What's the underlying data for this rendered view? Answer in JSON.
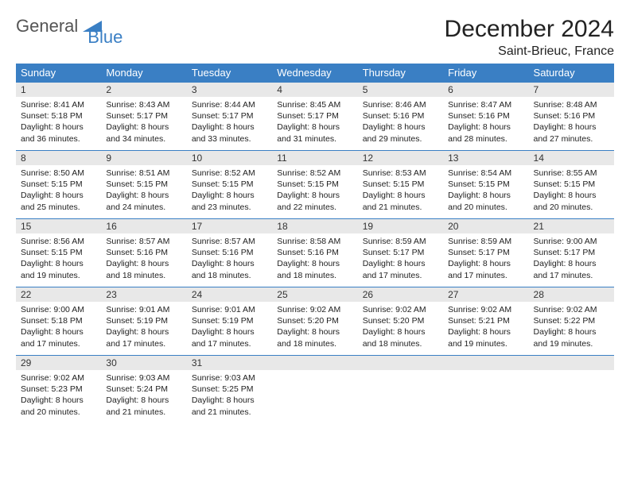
{
  "logo": {
    "general": "General",
    "blue": "Blue"
  },
  "title": "December 2024",
  "location": "Saint-Brieuc, France",
  "colors": {
    "header_bg": "#3a7fc4",
    "header_fg": "#ffffff",
    "daynum_bg": "#e8e8e8",
    "border": "#3a7fc4",
    "text": "#222222",
    "page_bg": "#ffffff"
  },
  "weekday_headers": [
    "Sunday",
    "Monday",
    "Tuesday",
    "Wednesday",
    "Thursday",
    "Friday",
    "Saturday"
  ],
  "weeks": [
    [
      {
        "day": "1",
        "sunrise": "8:41 AM",
        "sunset": "5:18 PM",
        "daylight_h": "8",
        "daylight_m": "36"
      },
      {
        "day": "2",
        "sunrise": "8:43 AM",
        "sunset": "5:17 PM",
        "daylight_h": "8",
        "daylight_m": "34"
      },
      {
        "day": "3",
        "sunrise": "8:44 AM",
        "sunset": "5:17 PM",
        "daylight_h": "8",
        "daylight_m": "33"
      },
      {
        "day": "4",
        "sunrise": "8:45 AM",
        "sunset": "5:17 PM",
        "daylight_h": "8",
        "daylight_m": "31"
      },
      {
        "day": "5",
        "sunrise": "8:46 AM",
        "sunset": "5:16 PM",
        "daylight_h": "8",
        "daylight_m": "29"
      },
      {
        "day": "6",
        "sunrise": "8:47 AM",
        "sunset": "5:16 PM",
        "daylight_h": "8",
        "daylight_m": "28"
      },
      {
        "day": "7",
        "sunrise": "8:48 AM",
        "sunset": "5:16 PM",
        "daylight_h": "8",
        "daylight_m": "27"
      }
    ],
    [
      {
        "day": "8",
        "sunrise": "8:50 AM",
        "sunset": "5:15 PM",
        "daylight_h": "8",
        "daylight_m": "25"
      },
      {
        "day": "9",
        "sunrise": "8:51 AM",
        "sunset": "5:15 PM",
        "daylight_h": "8",
        "daylight_m": "24"
      },
      {
        "day": "10",
        "sunrise": "8:52 AM",
        "sunset": "5:15 PM",
        "daylight_h": "8",
        "daylight_m": "23"
      },
      {
        "day": "11",
        "sunrise": "8:52 AM",
        "sunset": "5:15 PM",
        "daylight_h": "8",
        "daylight_m": "22"
      },
      {
        "day": "12",
        "sunrise": "8:53 AM",
        "sunset": "5:15 PM",
        "daylight_h": "8",
        "daylight_m": "21"
      },
      {
        "day": "13",
        "sunrise": "8:54 AM",
        "sunset": "5:15 PM",
        "daylight_h": "8",
        "daylight_m": "20"
      },
      {
        "day": "14",
        "sunrise": "8:55 AM",
        "sunset": "5:15 PM",
        "daylight_h": "8",
        "daylight_m": "20"
      }
    ],
    [
      {
        "day": "15",
        "sunrise": "8:56 AM",
        "sunset": "5:15 PM",
        "daylight_h": "8",
        "daylight_m": "19"
      },
      {
        "day": "16",
        "sunrise": "8:57 AM",
        "sunset": "5:16 PM",
        "daylight_h": "8",
        "daylight_m": "18"
      },
      {
        "day": "17",
        "sunrise": "8:57 AM",
        "sunset": "5:16 PM",
        "daylight_h": "8",
        "daylight_m": "18"
      },
      {
        "day": "18",
        "sunrise": "8:58 AM",
        "sunset": "5:16 PM",
        "daylight_h": "8",
        "daylight_m": "18"
      },
      {
        "day": "19",
        "sunrise": "8:59 AM",
        "sunset": "5:17 PM",
        "daylight_h": "8",
        "daylight_m": "17"
      },
      {
        "day": "20",
        "sunrise": "8:59 AM",
        "sunset": "5:17 PM",
        "daylight_h": "8",
        "daylight_m": "17"
      },
      {
        "day": "21",
        "sunrise": "9:00 AM",
        "sunset": "5:17 PM",
        "daylight_h": "8",
        "daylight_m": "17"
      }
    ],
    [
      {
        "day": "22",
        "sunrise": "9:00 AM",
        "sunset": "5:18 PM",
        "daylight_h": "8",
        "daylight_m": "17"
      },
      {
        "day": "23",
        "sunrise": "9:01 AM",
        "sunset": "5:19 PM",
        "daylight_h": "8",
        "daylight_m": "17"
      },
      {
        "day": "24",
        "sunrise": "9:01 AM",
        "sunset": "5:19 PM",
        "daylight_h": "8",
        "daylight_m": "17"
      },
      {
        "day": "25",
        "sunrise": "9:02 AM",
        "sunset": "5:20 PM",
        "daylight_h": "8",
        "daylight_m": "18"
      },
      {
        "day": "26",
        "sunrise": "9:02 AM",
        "sunset": "5:20 PM",
        "daylight_h": "8",
        "daylight_m": "18"
      },
      {
        "day": "27",
        "sunrise": "9:02 AM",
        "sunset": "5:21 PM",
        "daylight_h": "8",
        "daylight_m": "19"
      },
      {
        "day": "28",
        "sunrise": "9:02 AM",
        "sunset": "5:22 PM",
        "daylight_h": "8",
        "daylight_m": "19"
      }
    ],
    [
      {
        "day": "29",
        "sunrise": "9:02 AM",
        "sunset": "5:23 PM",
        "daylight_h": "8",
        "daylight_m": "20"
      },
      {
        "day": "30",
        "sunrise": "9:03 AM",
        "sunset": "5:24 PM",
        "daylight_h": "8",
        "daylight_m": "21"
      },
      {
        "day": "31",
        "sunrise": "9:03 AM",
        "sunset": "5:25 PM",
        "daylight_h": "8",
        "daylight_m": "21"
      },
      null,
      null,
      null,
      null
    ]
  ],
  "labels": {
    "sunrise_prefix": "Sunrise: ",
    "sunset_prefix": "Sunset: ",
    "daylight_prefix": "Daylight: ",
    "hours_word": " hours",
    "and_word": "and ",
    "minutes_word": " minutes."
  }
}
